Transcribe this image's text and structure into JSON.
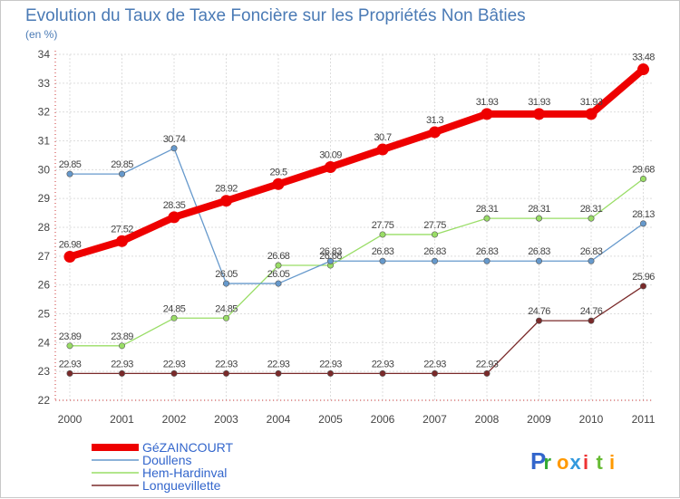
{
  "chart_data": {
    "type": "line",
    "title": "Evolution du Taux de Taxe Foncière sur les Propriétés Non Bâties",
    "ylabel": "(en %)",
    "xlabel": "",
    "ylim": [
      22,
      34
    ],
    "yticks": [
      "22",
      "23",
      "24",
      "25",
      "26",
      "27",
      "28",
      "29",
      "30",
      "31",
      "32",
      "33",
      "34"
    ],
    "x": [
      "2000",
      "2001",
      "2002",
      "2003",
      "2004",
      "2005",
      "2006",
      "2007",
      "2008",
      "2009",
      "2010",
      "2011"
    ],
    "grid": true,
    "legend": "bottom-left",
    "series": [
      {
        "name": "Longuevillette",
        "color": "#7a2a2a",
        "values": [
          22.93,
          22.93,
          22.93,
          22.93,
          22.93,
          22.93,
          22.93,
          22.93,
          22.93,
          24.76,
          24.76,
          25.96
        ],
        "labels": [
          "22.93",
          "22.93",
          "22.93",
          "22.93",
          "22.93",
          "22.93",
          "22.93",
          "22.93",
          "22.93",
          "24.76",
          "24.76",
          "25.96"
        ]
      },
      {
        "name": "Hem-Hardinval",
        "color": "#99dd66",
        "values": [
          23.89,
          23.89,
          24.85,
          24.85,
          26.68,
          26.68,
          27.75,
          27.75,
          28.31,
          28.31,
          28.31,
          29.68
        ],
        "labels": [
          "23.89",
          "23.89",
          "24.85",
          "24.85",
          "26.68",
          "26.68",
          "27.75",
          "27.75",
          "28.31",
          "28.31",
          "28.31",
          "29.68"
        ]
      },
      {
        "name": "Doullens",
        "color": "#6699cc",
        "values": [
          29.85,
          29.85,
          30.74,
          26.05,
          26.05,
          26.83,
          26.83,
          26.83,
          26.83,
          26.83,
          26.83,
          28.13
        ],
        "labels": [
          "29.85",
          "29.85",
          "30.74",
          "26.05",
          "26.05",
          "26.83",
          "26.83",
          "26.83",
          "26.83",
          "26.83",
          "26.83",
          "28.13"
        ]
      },
      {
        "name": "GéZAINCOURT",
        "color": "#ee0000",
        "values": [
          26.98,
          27.52,
          28.35,
          28.92,
          29.5,
          30.09,
          30.7,
          31.3,
          31.93,
          31.93,
          31.93,
          33.48
        ],
        "labels": [
          "26.98",
          "27.52",
          "28.35",
          "28.92",
          "29.5",
          "30.09",
          "30.7",
          "31.3",
          "31.93",
          "31.93",
          "31.93",
          "33.48"
        ]
      }
    ],
    "legend_order": [
      "GéZAINCOURT",
      "Doullens",
      "Hem-Hardinval",
      "Longuevillette"
    ]
  },
  "brand": {
    "letters": [
      "P",
      "r",
      "o",
      "x",
      "i",
      "t",
      "i"
    ],
    "colors": [
      "#3366cc",
      "#33aa33",
      "#ff9900",
      "#3399dd",
      "#ee3333",
      "#66bb33",
      "#ff9900"
    ]
  },
  "colors": {
    "title": "#4a7ab5",
    "axis_text": "#444444",
    "grid": "#dddddd",
    "legend_text": "#3366cc"
  }
}
